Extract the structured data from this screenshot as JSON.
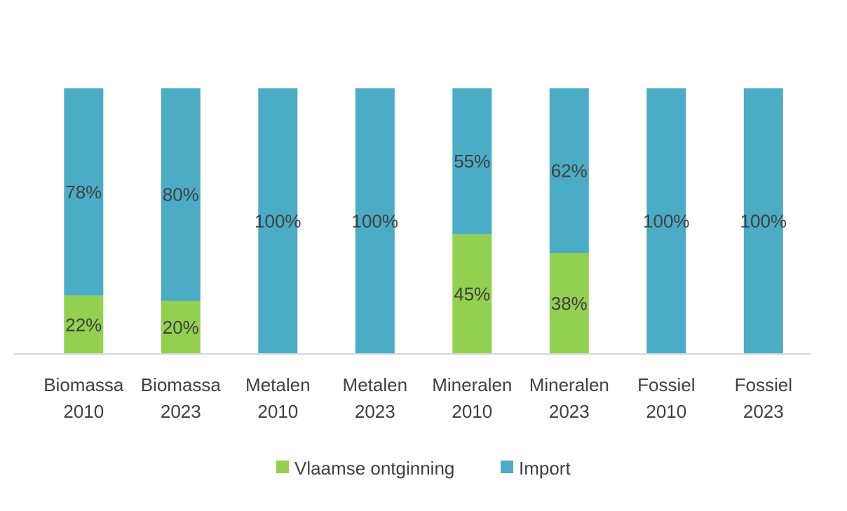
{
  "chart_data": {
    "type": "bar",
    "stacked": true,
    "normalized": true,
    "categories": [
      [
        "Biomassa",
        "2010"
      ],
      [
        "Biomassa",
        "2023"
      ],
      [
        "Metalen",
        "2010"
      ],
      [
        "Metalen",
        "2023"
      ],
      [
        "Mineralen",
        "2010"
      ],
      [
        "Mineralen",
        "2023"
      ],
      [
        "Fossiel",
        "2010"
      ],
      [
        "Fossiel",
        "2023"
      ]
    ],
    "series": [
      {
        "name": "Vlaamse ontginning",
        "color": "#92d050",
        "values": [
          22,
          20,
          0,
          0,
          45,
          38,
          0,
          0
        ],
        "labels": [
          "22%",
          "20%",
          "",
          "",
          "45%",
          "38%",
          "",
          ""
        ]
      },
      {
        "name": "Import",
        "color": "#4bacc6",
        "values": [
          78,
          80,
          100,
          100,
          55,
          62,
          100,
          100
        ],
        "labels": [
          "78%",
          "80%",
          "100%",
          "100%",
          "55%",
          "62%",
          "100%",
          "100%"
        ]
      }
    ],
    "ylim": [
      0,
      100
    ],
    "grid": false,
    "legend_position": "bottom",
    "axis_color": "#d9d9d9"
  }
}
